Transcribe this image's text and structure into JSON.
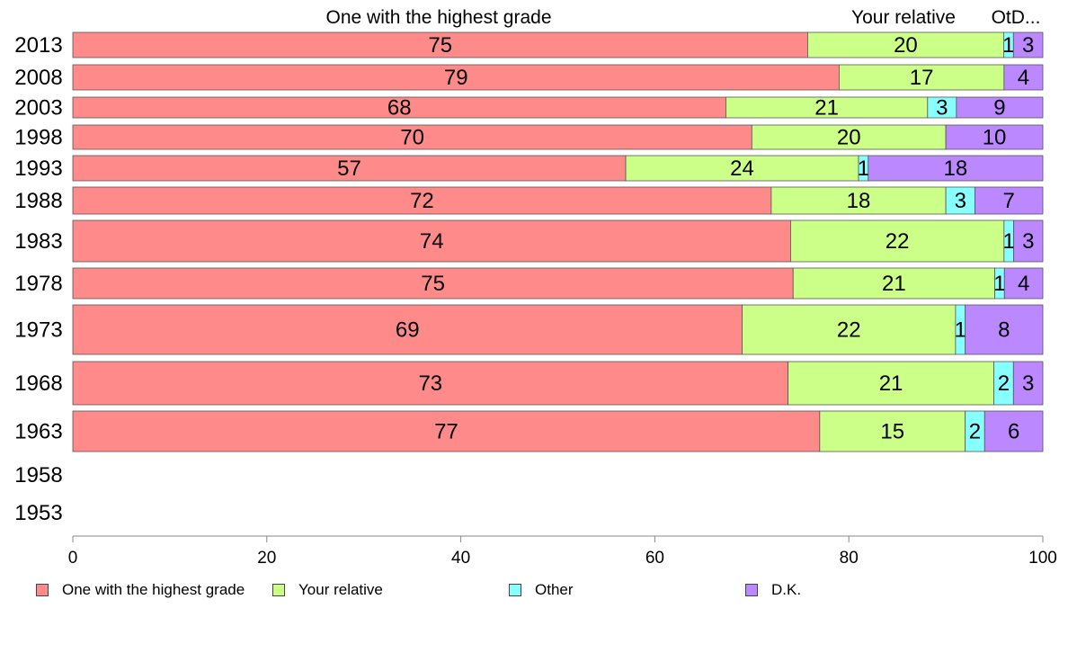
{
  "chart_data": {
    "type": "bar",
    "orientation": "horizontal",
    "stacked": true,
    "categories": [
      "2013",
      "2008",
      "2003",
      "1998",
      "1993",
      "1988",
      "1983",
      "1978",
      "1973",
      "1968",
      "1963",
      "1958",
      "1953"
    ],
    "series": [
      {
        "name": "One with the highest grade",
        "color": "#ff8a8a",
        "values": [
          75,
          79,
          68,
          70,
          57,
          72,
          74,
          75,
          69,
          73,
          77,
          null,
          null
        ]
      },
      {
        "name": "Your relative",
        "color": "#ccff88",
        "values": [
          20,
          17,
          21,
          20,
          24,
          18,
          22,
          21,
          22,
          21,
          15,
          null,
          null
        ]
      },
      {
        "name": "Other",
        "color": "#88ffff",
        "values": [
          1,
          0,
          3,
          0,
          1,
          3,
          1,
          1,
          1,
          2,
          2,
          null,
          null
        ]
      },
      {
        "name": "D.K.",
        "color": "#bb88ff",
        "values": [
          3,
          4,
          9,
          10,
          18,
          7,
          3,
          4,
          8,
          3,
          6,
          null,
          null
        ]
      }
    ],
    "header_labels": [
      "One with the highest grade",
      "Your relative",
      "OtD..."
    ],
    "xlim": [
      0,
      100
    ],
    "xticks": [
      0,
      20,
      40,
      60,
      80,
      100
    ],
    "grid": false,
    "legend_position": "bottom"
  },
  "legend": [
    {
      "label": "One with the highest grade",
      "color": "#ff8a8a"
    },
    {
      "label": "Your relative",
      "color": "#ccff88"
    },
    {
      "label": "Other",
      "color": "#88ffff"
    },
    {
      "label": "D.K.",
      "color": "#bb88ff"
    }
  ]
}
